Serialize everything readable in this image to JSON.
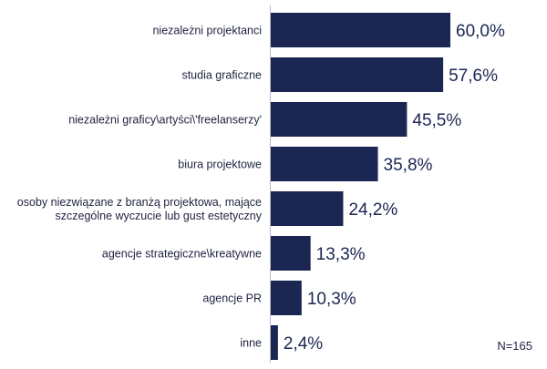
{
  "chart_data": {
    "type": "bar",
    "orientation": "horizontal",
    "categories": [
      "niezależni projektanci",
      "studia graficzne",
      "niezależni graficy\\artyści\\'freelanserzy'",
      "biura projektowe",
      "osoby niezwiązane z branżą projektowa, mające szczególne wyczucie lub gust estetyczny",
      "agencje strategiczne\\kreatywne",
      "agencje PR",
      "inne"
    ],
    "category_lines": [
      [
        "niezależni projektanci"
      ],
      [
        "studia graficzne"
      ],
      [
        "niezależni graficy\\artyści\\'freelanserzy'"
      ],
      [
        "biura projektowe"
      ],
      [
        "osoby niezwiązane z branżą projektowa, mające",
        "szczególne wyczucie lub gust estetyczny"
      ],
      [
        "agencje strategiczne\\kreatywne"
      ],
      [
        "agencje PR"
      ],
      [
        "inne"
      ]
    ],
    "values": [
      60.0,
      57.6,
      45.5,
      35.8,
      24.2,
      13.3,
      10.3,
      2.4
    ],
    "value_labels": [
      "60,0%",
      "57,6%",
      "45,5%",
      "35,8%",
      "24,2%",
      "13,3%",
      "10,3%",
      "2,4%"
    ],
    "title": "",
    "xlabel": "",
    "ylabel": "",
    "xlim": [
      0,
      60
    ],
    "grid": false,
    "legend": "none",
    "bar_color": "#1c2653",
    "annotation": "N=165"
  }
}
